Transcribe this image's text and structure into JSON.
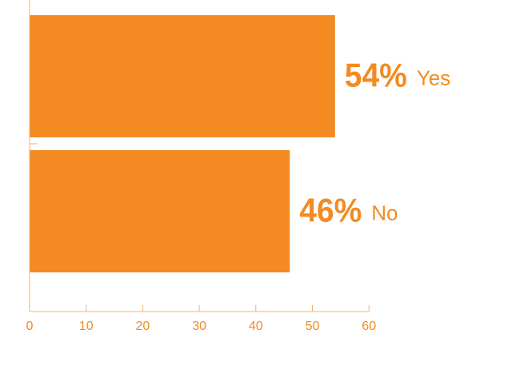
{
  "chart_data": {
    "type": "bar",
    "orientation": "horizontal",
    "categories": [
      "Yes",
      "No"
    ],
    "values": [
      54,
      46
    ],
    "value_labels": [
      "54%",
      "46%"
    ],
    "xlim": [
      0,
      60
    ],
    "xticks": [
      0,
      10,
      20,
      30,
      40,
      50,
      60
    ],
    "title": "",
    "xlabel": "",
    "ylabel": "",
    "grid": false,
    "colors": {
      "bar": "#F38B22",
      "text": "#F38B22",
      "axis": "#F6B16E"
    }
  }
}
